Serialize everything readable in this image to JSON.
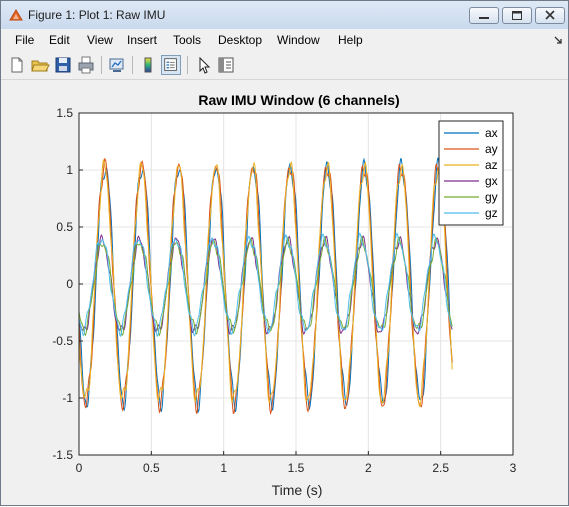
{
  "window": {
    "title": "Figure 1: Plot 1: Raw IMU"
  },
  "menu": [
    "File",
    "Edit",
    "View",
    "Insert",
    "Tools",
    "Desktop",
    "Window",
    "Help"
  ],
  "toolbar_icons": [
    "new-figure-icon",
    "open-file-icon",
    "save-icon",
    "print-icon",
    "link-plot-icon",
    "colorbar-icon",
    "legend-icon",
    "pointer-icon",
    "property-editor-icon"
  ],
  "chart_data": {
    "type": "line",
    "title": "Raw IMU Window (6 channels)",
    "xlabel": "Time (s)",
    "ylabel": "",
    "xlim": [
      0,
      3
    ],
    "ylim": [
      -1.5,
      1.5
    ],
    "xticks": [
      0,
      0.5,
      1,
      1.5,
      2,
      2.5,
      3
    ],
    "xtick_labels": [
      "0",
      "0.5",
      "1",
      "1.5",
      "2",
      "2.5",
      "3"
    ],
    "yticks": [
      -1.5,
      -1,
      -0.5,
      0,
      0.5,
      1,
      1.5
    ],
    "ytick_labels": [
      "-1.5",
      "-1",
      "-0.5",
      "0",
      "0.5",
      "1",
      "1.5"
    ],
    "grid": true,
    "legend_position": "top-right",
    "x_end": 2.58,
    "series": [
      {
        "name": "ax",
        "color": "#0072bd",
        "amplitude": 1.03,
        "frequency": 3.9,
        "phase": -2.85,
        "offset": 0.0
      },
      {
        "name": "ay",
        "color": "#d95319",
        "amplitude": 1.05,
        "frequency": 3.9,
        "phase": -2.75,
        "offset": 0.0
      },
      {
        "name": "az",
        "color": "#edb120",
        "amplitude": 1.02,
        "frequency": 3.9,
        "phase": -2.7,
        "offset": 0.0
      },
      {
        "name": "gx",
        "color": "#7e2f8e",
        "amplitude": 0.4,
        "frequency": 3.9,
        "phase": -2.35,
        "offset": -0.02
      },
      {
        "name": "gy",
        "color": "#77ac30",
        "amplitude": 0.38,
        "frequency": 3.9,
        "phase": -2.45,
        "offset": -0.02
      },
      {
        "name": "gz",
        "color": "#4dbeee",
        "amplitude": 0.4,
        "frequency": 3.9,
        "phase": -2.25,
        "offset": 0.0
      }
    ]
  }
}
